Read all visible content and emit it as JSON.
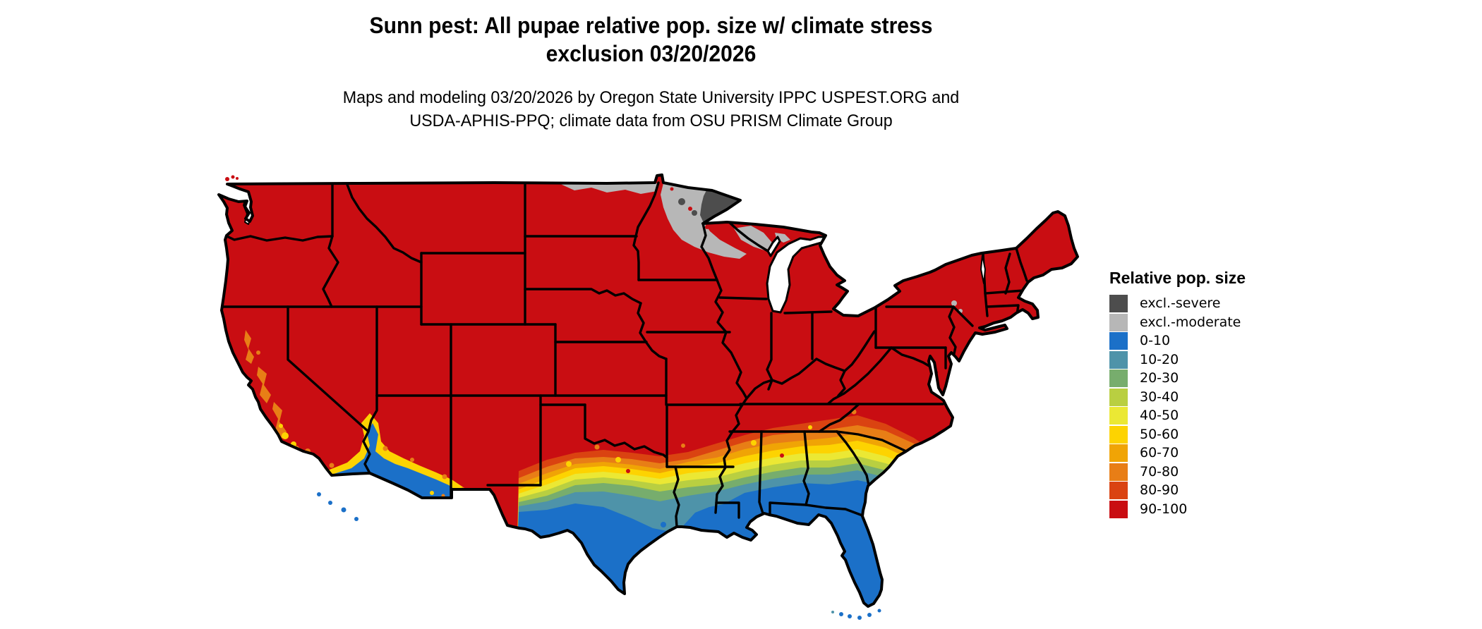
{
  "title": {
    "line1": "Sunn pest: All pupae relative pop. size w/ climate stress",
    "line2": "exclusion 03/20/2026"
  },
  "subtitle": {
    "line1": "Maps and modeling 03/20/2026 by Oregon State University IPPC USPEST.ORG and",
    "line2": "USDA-APHIS-PPQ; climate data from OSU PRISM Climate Group"
  },
  "legend": {
    "title": "Relative pop. size",
    "items": [
      {
        "label": "excl.-severe",
        "key": "excl_severe",
        "color": "#4D4D4D"
      },
      {
        "label": "excl.-moderate",
        "key": "excl_moderate",
        "color": "#B7B7B7"
      },
      {
        "label": "0-10",
        "key": "r0_10",
        "color": "#1B70C8"
      },
      {
        "label": "10-20",
        "key": "r10_20",
        "color": "#4E93A9"
      },
      {
        "label": "20-30",
        "key": "r20_30",
        "color": "#77AD6D"
      },
      {
        "label": "30-40",
        "key": "r30_40",
        "color": "#B9CF41"
      },
      {
        "label": "40-50",
        "key": "r40_50",
        "color": "#EBE834"
      },
      {
        "label": "50-60",
        "key": "r50_60",
        "color": "#FDD301"
      },
      {
        "label": "60-70",
        "key": "r60_70",
        "color": "#F0A405"
      },
      {
        "label": "70-80",
        "key": "r70_80",
        "color": "#E87E16"
      },
      {
        "label": "80-90",
        "key": "r80_90",
        "color": "#DA4311"
      },
      {
        "label": "90-100",
        "key": "r90_100",
        "color": "#C90D12"
      }
    ]
  },
  "map": {
    "palette": {
      "excl_severe": "#4D4D4D",
      "excl_moderate": "#B7B7B7",
      "r0_10": "#1B70C8",
      "r10_20": "#4E93A9",
      "r20_30": "#77AD6D",
      "r30_40": "#B9CF41",
      "r40_50": "#EBE834",
      "r50_60": "#FDD301",
      "r60_70": "#F0A405",
      "r70_80": "#E87E16",
      "r80_90": "#DA4311",
      "r90_100": "#C90D12",
      "water": "#FFFFFF",
      "border": "#000000"
    }
  }
}
